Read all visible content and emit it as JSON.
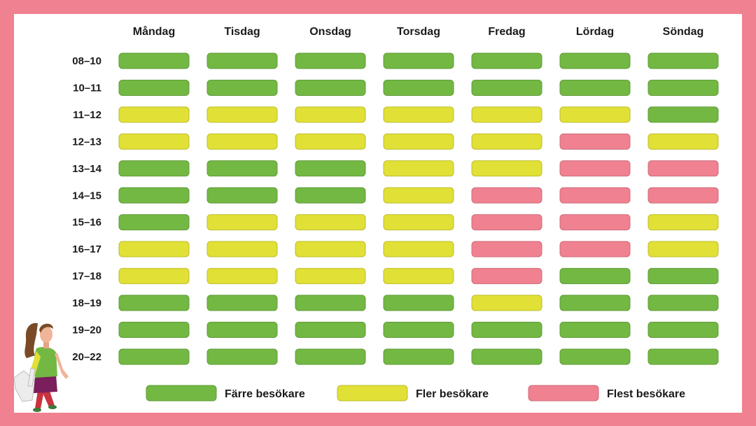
{
  "chart_data": {
    "type": "heatmap",
    "title": "",
    "days": [
      "Måndag",
      "Tisdag",
      "Onsdag",
      "Torsdag",
      "Fredag",
      "Lördag",
      "Söndag"
    ],
    "time_slots": [
      "08–10",
      "10–11",
      "11–12",
      "12–13",
      "13–14",
      "14–15",
      "15–16",
      "16–17",
      "17–18",
      "18–19",
      "19–20",
      "20–22"
    ],
    "levels": [
      {
        "key": "G",
        "label": "Färre besökare",
        "color": "#72b843"
      },
      {
        "key": "Y",
        "label": "Fler besökare",
        "color": "#e0e036"
      },
      {
        "key": "R",
        "label": "Flest besökare",
        "color": "#f08190"
      }
    ],
    "grid": [
      [
        "G",
        "G",
        "G",
        "G",
        "G",
        "G",
        "G"
      ],
      [
        "G",
        "G",
        "G",
        "G",
        "G",
        "G",
        "G"
      ],
      [
        "Y",
        "Y",
        "Y",
        "Y",
        "Y",
        "Y",
        "G"
      ],
      [
        "Y",
        "Y",
        "Y",
        "Y",
        "Y",
        "R",
        "Y"
      ],
      [
        "G",
        "G",
        "G",
        "Y",
        "Y",
        "R",
        "R"
      ],
      [
        "G",
        "G",
        "G",
        "Y",
        "R",
        "R",
        "R"
      ],
      [
        "G",
        "Y",
        "Y",
        "Y",
        "R",
        "R",
        "Y"
      ],
      [
        "Y",
        "Y",
        "Y",
        "Y",
        "R",
        "R",
        "Y"
      ],
      [
        "Y",
        "Y",
        "Y",
        "Y",
        "R",
        "G",
        "G"
      ],
      [
        "G",
        "G",
        "G",
        "G",
        "Y",
        "G",
        "G"
      ],
      [
        "G",
        "G",
        "G",
        "G",
        "G",
        "G",
        "G"
      ],
      [
        "G",
        "G",
        "G",
        "G",
        "G",
        "G",
        "G"
      ]
    ],
    "legend_position": "bottom"
  },
  "colors": {
    "frame": "#f08190",
    "panel": "#ffffff"
  },
  "illustration": "woman-with-shopping-bags"
}
